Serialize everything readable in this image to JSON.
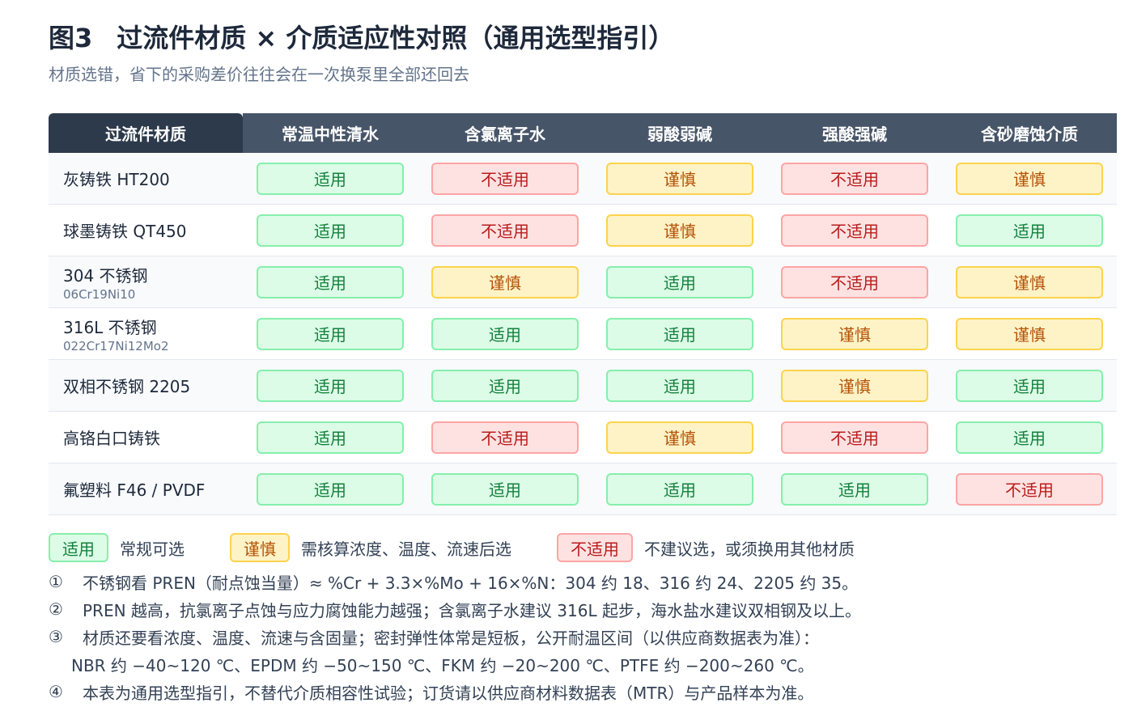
{
  "header": {
    "figure_label": "图3",
    "title": "过流件材质 × 介质适应性对照（通用选型指引）",
    "subtitle": "材质选错，省下的采购差价往往会在一次换泵里全部还回去"
  },
  "table": {
    "corner_header": "过流件材质",
    "columns": [
      "常温中性清水",
      "含氯离子水",
      "弱酸弱碱",
      "强酸强碱",
      "含砂磨蚀介质"
    ],
    "rows": [
      {
        "material": "灰铸铁 HT200",
        "grade": "",
        "ratings": [
          "适用",
          "不适用",
          "谨慎",
          "不适用",
          "谨慎"
        ]
      },
      {
        "material": "球墨铸铁 QT450",
        "grade": "",
        "ratings": [
          "适用",
          "不适用",
          "谨慎",
          "不适用",
          "适用"
        ]
      },
      {
        "material": "304 不锈钢",
        "grade": "06Cr19Ni10",
        "ratings": [
          "适用",
          "谨慎",
          "适用",
          "不适用",
          "谨慎"
        ]
      },
      {
        "material": "316L 不锈钢",
        "grade": "022Cr17Ni12Mo2",
        "ratings": [
          "适用",
          "适用",
          "适用",
          "谨慎",
          "谨慎"
        ]
      },
      {
        "material": "双相不锈钢 2205",
        "grade": "",
        "ratings": [
          "适用",
          "适用",
          "适用",
          "谨慎",
          "适用"
        ]
      },
      {
        "material": "高铬白口铸铁",
        "grade": "",
        "ratings": [
          "适用",
          "不适用",
          "谨慎",
          "不适用",
          "适用"
        ]
      },
      {
        "material": "氟塑料 F46 / PVDF",
        "grade": "",
        "ratings": [
          "适用",
          "适用",
          "适用",
          "适用",
          "不适用"
        ]
      }
    ]
  },
  "legend": [
    {
      "label": "适用",
      "desc": "常规可选",
      "level": "ok"
    },
    {
      "label": "谨慎",
      "desc": "需核算浓度、温度、流速后选",
      "level": "caution"
    },
    {
      "label": "不适用",
      "desc": "不建议选，或须换用其他材质",
      "level": "no"
    }
  ],
  "notes": [
    {
      "num": "①",
      "text": "不锈钢看 PREN（耐点蚀当量）≈ %Cr + 3.3×%Mo + 16×%N：304 约 18、316 约 24、2205 约 35。"
    },
    {
      "num": "②",
      "text": "PREN 越高，抗氯离子点蚀与应力腐蚀能力越强；含氯离子水建议 316L 起步，海水盐水建议双相钢及以上。"
    },
    {
      "num": "③",
      "text": "材质还要看浓度、温度、流速与含固量；密封弹性体常是短板，公开耐温区间（以供应商数据表为准）："
    },
    {
      "num": "",
      "text": "NBR 约 −40~120 ℃、EPDM 约 −50~150 ℃、FKM 约 −20~200 ℃、PTFE 约 −200~260 ℃。"
    },
    {
      "num": "④",
      "text": "本表为通用选型指引，不替代介质相容性试验；订货请以供应商材料数据表（MTR）与产品样本为准。"
    }
  ],
  "colors": {
    "ok_fill": "#dcfce7",
    "ok_border": "#86efac",
    "ok_text": "#15803d",
    "caution_fill": "#fef3c7",
    "caution_border": "#fcd34d",
    "caution_text": "#b45309",
    "no_fill": "#fee2e2",
    "no_border": "#fca5a5",
    "no_text": "#b91c1c",
    "corner_header_bg": "#2d3a4b",
    "header_bg": "#475569"
  }
}
